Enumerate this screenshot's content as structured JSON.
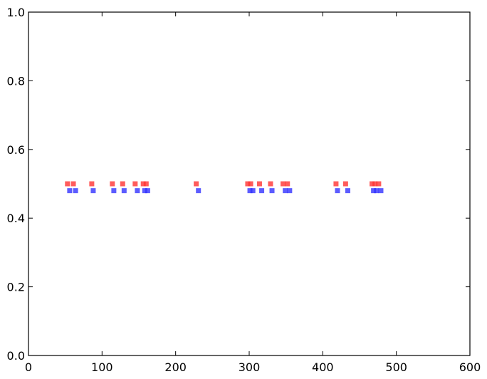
{
  "chart_data": {
    "type": "scatter",
    "title": "",
    "xlabel": "",
    "ylabel": "",
    "xlim": [
      0,
      600
    ],
    "ylim": [
      0.0,
      1.0
    ],
    "grid": false,
    "x_ticks": [
      0,
      100,
      200,
      300,
      400,
      500,
      600
    ],
    "y_ticks": [
      0.0,
      0.2,
      0.4,
      0.6,
      0.8,
      1.0
    ],
    "x_tick_labels": [
      "0",
      "100",
      "200",
      "300",
      "400",
      "500",
      "600"
    ],
    "y_tick_labels": [
      "0.0",
      "0.2",
      "0.4",
      "0.6",
      "0.8",
      "1.0"
    ],
    "marker": "square",
    "series": [
      {
        "color": "#ff3333",
        "y": 0.5,
        "x": [
          53,
          61,
          86,
          114,
          128,
          145,
          156,
          160,
          228,
          298,
          302,
          314,
          329,
          346,
          352,
          418,
          431,
          467,
          471,
          476
        ]
      },
      {
        "color": "#3333ff",
        "y": 0.48,
        "x": [
          56,
          64,
          88,
          116,
          130,
          148,
          158,
          162,
          231,
          301,
          305,
          317,
          331,
          349,
          355,
          420,
          434,
          469,
          473,
          479
        ]
      }
    ]
  }
}
